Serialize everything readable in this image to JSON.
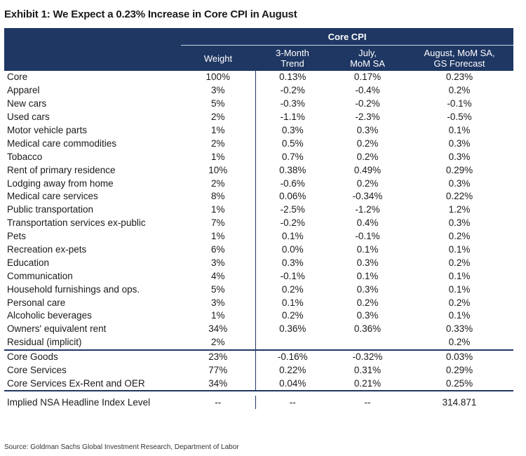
{
  "title": "Exhibit 1: We Expect a 0.23% Increase in Core CPI in August",
  "header": {
    "group": "Core CPI",
    "weight": "Weight",
    "three_month_l1": "3-Month",
    "three_month_l2": "Trend",
    "july_l1": "July,",
    "july_l2": "MoM SA",
    "aug_l1": "August, MoM SA,",
    "aug_l2": "GS Forecast"
  },
  "rows": [
    {
      "label": "Core",
      "weight": "100%",
      "trend": "0.13%",
      "july": "0.17%",
      "aug": "0.23%"
    },
    {
      "label": "Apparel",
      "weight": "3%",
      "trend": "-0.2%",
      "july": "-0.4%",
      "aug": "0.2%"
    },
    {
      "label": "New cars",
      "weight": "5%",
      "trend": "-0.3%",
      "july": "-0.2%",
      "aug": "-0.1%"
    },
    {
      "label": "Used cars",
      "weight": "2%",
      "trend": "-1.1%",
      "july": "-2.3%",
      "aug": "-0.5%"
    },
    {
      "label": "Motor vehicle parts",
      "weight": "1%",
      "trend": "0.3%",
      "july": "0.3%",
      "aug": "0.1%"
    },
    {
      "label": "Medical care commodities",
      "weight": "2%",
      "trend": "0.5%",
      "july": "0.2%",
      "aug": "0.3%"
    },
    {
      "label": "Tobacco",
      "weight": "1%",
      "trend": "0.7%",
      "july": "0.2%",
      "aug": "0.3%"
    },
    {
      "label": "Rent of primary residence",
      "weight": "10%",
      "trend": "0.38%",
      "july": "0.49%",
      "aug": "0.29%"
    },
    {
      "label": "Lodging away from home",
      "weight": "2%",
      "trend": "-0.6%",
      "july": "0.2%",
      "aug": "0.3%"
    },
    {
      "label": "Medical care services",
      "weight": "8%",
      "trend": "0.06%",
      "july": "-0.34%",
      "aug": "0.22%"
    },
    {
      "label": "Public transportation",
      "weight": "1%",
      "trend": "-2.5%",
      "july": "-1.2%",
      "aug": "1.2%"
    },
    {
      "label": "Transportation services ex-public",
      "weight": "7%",
      "trend": "-0.2%",
      "july": "0.4%",
      "aug": "0.3%"
    },
    {
      "label": "Pets",
      "weight": "1%",
      "trend": "0.1%",
      "july": "-0.1%",
      "aug": "0.2%"
    },
    {
      "label": "Recreation ex-pets",
      "weight": "6%",
      "trend": "0.0%",
      "july": "0.1%",
      "aug": "0.1%"
    },
    {
      "label": "Education",
      "weight": "3%",
      "trend": "0.3%",
      "july": "0.3%",
      "aug": "0.2%"
    },
    {
      "label": "Communication",
      "weight": "4%",
      "trend": "-0.1%",
      "july": "0.1%",
      "aug": "0.1%"
    },
    {
      "label": "Household furnishings and ops.",
      "weight": "5%",
      "trend": "0.2%",
      "july": "0.3%",
      "aug": "0.1%"
    },
    {
      "label": "Personal care",
      "weight": "3%",
      "trend": "0.1%",
      "july": "0.2%",
      "aug": "0.2%"
    },
    {
      "label": "Alcoholic beverages",
      "weight": "1%",
      "trend": "0.2%",
      "july": "0.3%",
      "aug": "0.1%"
    },
    {
      "label": "Owners' equivalent rent",
      "weight": "34%",
      "trend": "0.36%",
      "july": "0.36%",
      "aug": "0.33%"
    },
    {
      "label": "Residual (implicit)",
      "weight": "2%",
      "trend": "",
      "july": "",
      "aug": "0.2%"
    }
  ],
  "summary_rows": [
    {
      "label": "Core Goods",
      "weight": "23%",
      "trend": "-0.16%",
      "july": "-0.32%",
      "aug": "0.03%"
    },
    {
      "label": "Core Services",
      "weight": "77%",
      "trend": "0.22%",
      "july": "0.31%",
      "aug": "0.29%"
    },
    {
      "label": "Core Services Ex-Rent and OER",
      "weight": "34%",
      "trend": "0.04%",
      "july": "0.21%",
      "aug": "0.25%"
    }
  ],
  "index_row": {
    "label": "Implied NSA Headline Index Level",
    "weight": "--",
    "trend": "--",
    "july": "--",
    "aug": "314.871"
  },
  "source": "Source: Goldman Sachs Global Investment Research, Department of Labor",
  "colors": {
    "header_bg": "#1f3763",
    "header_text": "#ffffff",
    "rule": "#1f3763"
  }
}
